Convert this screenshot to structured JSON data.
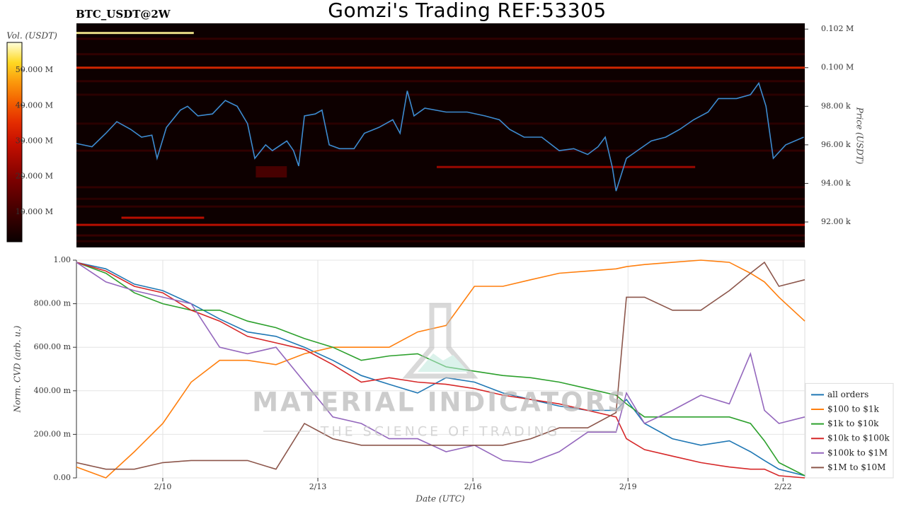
{
  "header": {
    "title": "Gomzi's Trading REF:53305",
    "symbol": "BTC_USDT@2W"
  },
  "watermark": {
    "brand": "MATERIAL INDICATORS",
    "tagline": "THE SCIENCE OF TRADING"
  },
  "chart_data": [
    {
      "type": "heatmap",
      "ylabel": "Price (USDT)",
      "xlim": [
        8.33,
        22.42
      ],
      "ylim": [
        90680,
        102300
      ],
      "yticks": [
        {
          "value": 92000,
          "label": "92.00 k"
        },
        {
          "value": 94000,
          "label": "94.00 k"
        },
        {
          "value": 96000,
          "label": "96.00 k"
        },
        {
          "value": 98000,
          "label": "98.00 k"
        },
        {
          "value": 100000,
          "label": "0.100 M"
        },
        {
          "value": 102000,
          "label": "0.102 M"
        }
      ],
      "colorbar": {
        "label": "Vol. (USDT)",
        "lim": [
          1600000,
          57800000
        ],
        "ticks": [
          {
            "value": 10000000,
            "label": "10.000 M"
          },
          {
            "value": 20000000,
            "label": "20.000 M"
          },
          {
            "value": 30000000,
            "label": "30.000 M"
          },
          {
            "value": 40000000,
            "label": "40.000 M"
          },
          {
            "value": 50000000,
            "label": "50.000 M"
          }
        ]
      },
      "bands": [
        {
          "price": 101800,
          "from": 8.33,
          "to": 10.6,
          "volume": 56000000
        },
        {
          "price": 100000,
          "from": 8.33,
          "to": 22.42,
          "volume": 35000000
        },
        {
          "price": 91850,
          "from": 8.33,
          "to": 22.42,
          "volume": 30000000
        },
        {
          "price": 92220,
          "from": 9.2,
          "to": 10.8,
          "volume": 30000000
        },
        {
          "price": 94850,
          "from": 15.3,
          "to": 20.3,
          "volume": 25000000
        },
        {
          "price": 94600,
          "from": 11.8,
          "to": 12.4,
          "volume": 12000000
        },
        {
          "price": 101500,
          "from": 8.33,
          "to": 22.42,
          "volume": 8000000
        },
        {
          "price": 100700,
          "from": 8.33,
          "to": 22.42,
          "volume": 8000000
        },
        {
          "price": 99300,
          "from": 8.33,
          "to": 22.42,
          "volume": 8000000
        },
        {
          "price": 98600,
          "from": 8.33,
          "to": 22.42,
          "volume": 7000000
        },
        {
          "price": 97100,
          "from": 8.33,
          "to": 22.42,
          "volume": 7000000
        },
        {
          "price": 95700,
          "from": 8.33,
          "to": 22.42,
          "volume": 8000000
        },
        {
          "price": 93800,
          "from": 8.33,
          "to": 22.42,
          "volume": 8000000
        },
        {
          "price": 93200,
          "from": 8.33,
          "to": 22.42,
          "volume": 7000000
        },
        {
          "price": 92800,
          "from": 8.33,
          "to": 22.42,
          "volume": 8000000
        },
        {
          "price": 91300,
          "from": 8.33,
          "to": 22.42,
          "volume": 9000000
        },
        {
          "price": 91000,
          "from": 8.33,
          "to": 22.42,
          "volume": 7000000
        }
      ],
      "price": {
        "color": "#3d8bd0",
        "x": [
          8.33,
          8.63,
          8.9,
          9.11,
          9.38,
          9.59,
          9.79,
          9.89,
          10.07,
          10.34,
          10.48,
          10.68,
          10.96,
          11.21,
          11.44,
          11.64,
          11.78,
          11.99,
          12.12,
          12.4,
          12.53,
          12.63,
          12.74,
          12.95,
          13.08,
          13.22,
          13.42,
          13.7,
          13.9,
          14.18,
          14.45,
          14.59,
          14.73,
          14.86,
          15.07,
          15.48,
          15.89,
          16.23,
          16.51,
          16.71,
          16.99,
          17.33,
          17.67,
          17.95,
          18.22,
          18.42,
          18.56,
          18.7,
          18.77,
          18.97,
          19.18,
          19.45,
          19.73,
          20.0,
          20.27,
          20.55,
          20.75,
          21.1,
          21.37,
          21.53,
          21.67,
          21.81,
          22.05,
          22.4
        ],
        "values": [
          96070,
          95900,
          96600,
          97200,
          96800,
          96400,
          96500,
          95300,
          96900,
          97800,
          98000,
          97500,
          97600,
          98300,
          98000,
          97100,
          95300,
          96000,
          95700,
          96200,
          95700,
          94900,
          97500,
          97600,
          97800,
          96000,
          95800,
          95800,
          96600,
          96900,
          97300,
          96600,
          98800,
          97500,
          97900,
          97700,
          97700,
          97500,
          97300,
          96800,
          96400,
          96400,
          95700,
          95800,
          95500,
          95900,
          96400,
          94800,
          93600,
          95300,
          95700,
          96200,
          96400,
          96800,
          97300,
          97700,
          98400,
          98400,
          98600,
          99200,
          98000,
          95300,
          96000,
          96400
        ]
      }
    },
    {
      "type": "line",
      "xlabel": "Date (UTC)",
      "ylabel": "Norm. CVD (arb. u.)",
      "grid": true,
      "legend": "lower right",
      "xlim": [
        8.33,
        22.42
      ],
      "ylim": [
        0,
        1
      ],
      "xticks": [
        {
          "value": 10,
          "label": "2/10"
        },
        {
          "value": 13,
          "label": "2/13"
        },
        {
          "value": 16,
          "label": "2/16"
        },
        {
          "value": 19,
          "label": "2/19"
        },
        {
          "value": 22,
          "label": "2/22"
        }
      ],
      "yticks": [
        {
          "value": 0,
          "label": "0.00"
        },
        {
          "value": 0.2,
          "label": "200.00 m"
        },
        {
          "value": 0.4,
          "label": "400.00 m"
        },
        {
          "value": 0.6,
          "label": "600.00 m"
        },
        {
          "value": 0.8,
          "label": "800.00 m"
        },
        {
          "value": 1,
          "label": "1.00"
        }
      ],
      "x": [
        8.33,
        8.9,
        9.45,
        10.0,
        10.55,
        11.1,
        11.64,
        12.19,
        12.74,
        13.29,
        13.84,
        14.38,
        14.93,
        15.48,
        16.03,
        16.58,
        17.12,
        17.67,
        18.22,
        18.77,
        18.97,
        19.32,
        19.86,
        20.41,
        20.96,
        21.37,
        21.64,
        21.92,
        22.42
      ],
      "series": [
        {
          "name": "all orders",
          "color": "#1f77b4",
          "values": [
            0.99,
            0.96,
            0.89,
            0.86,
            0.8,
            0.73,
            0.67,
            0.65,
            0.6,
            0.54,
            0.47,
            0.43,
            0.39,
            0.46,
            0.44,
            0.39,
            0.36,
            0.33,
            0.31,
            0.31,
            0.36,
            0.25,
            0.18,
            0.15,
            0.17,
            0.12,
            0.08,
            0.04,
            0.01
          ]
        },
        {
          "name": "$100 to $1k",
          "color": "#ff7f0e",
          "values": [
            0.05,
            0,
            0.12,
            0.25,
            0.44,
            0.54,
            0.54,
            0.52,
            0.57,
            0.6,
            0.6,
            0.6,
            0.67,
            0.7,
            0.88,
            0.88,
            0.91,
            0.94,
            0.95,
            0.96,
            0.97,
            0.98,
            0.99,
            1,
            0.99,
            0.94,
            0.9,
            0.83,
            0.72
          ]
        },
        {
          "name": "$1k to $10k",
          "color": "#2ca02c",
          "values": [
            0.99,
            0.94,
            0.85,
            0.8,
            0.77,
            0.77,
            0.72,
            0.69,
            0.64,
            0.6,
            0.54,
            0.56,
            0.57,
            0.51,
            0.49,
            0.47,
            0.46,
            0.44,
            0.41,
            0.38,
            0.34,
            0.28,
            0.28,
            0.28,
            0.28,
            0.25,
            0.17,
            0.07,
            0.01
          ]
        },
        {
          "name": "$10k to $100k",
          "color": "#d62728",
          "values": [
            0.99,
            0.95,
            0.88,
            0.85,
            0.77,
            0.72,
            0.65,
            0.62,
            0.59,
            0.52,
            0.44,
            0.46,
            0.44,
            0.43,
            0.41,
            0.38,
            0.36,
            0.34,
            0.31,
            0.28,
            0.18,
            0.13,
            0.1,
            0.07,
            0.05,
            0.04,
            0.04,
            0.01,
            0
          ]
        },
        {
          "name": "$100k to $1M",
          "color": "#9467bd",
          "values": [
            0.99,
            0.9,
            0.86,
            0.83,
            0.8,
            0.6,
            0.57,
            0.6,
            0.44,
            0.28,
            0.25,
            0.18,
            0.18,
            0.12,
            0.15,
            0.08,
            0.07,
            0.12,
            0.21,
            0.21,
            0.39,
            0.25,
            0.31,
            0.38,
            0.34,
            0.57,
            0.31,
            0.25,
            0.28
          ]
        },
        {
          "name": "$1M to $10M",
          "color": "#8c564b",
          "values": [
            0.07,
            0.04,
            0.04,
            0.07,
            0.08,
            0.08,
            0.08,
            0.04,
            0.25,
            0.18,
            0.15,
            0.15,
            0.15,
            0.15,
            0.15,
            0.15,
            0.18,
            0.23,
            0.23,
            0.3,
            0.83,
            0.83,
            0.77,
            0.77,
            0.86,
            0.94,
            0.99,
            0.88,
            0.91
          ]
        }
      ]
    }
  ]
}
